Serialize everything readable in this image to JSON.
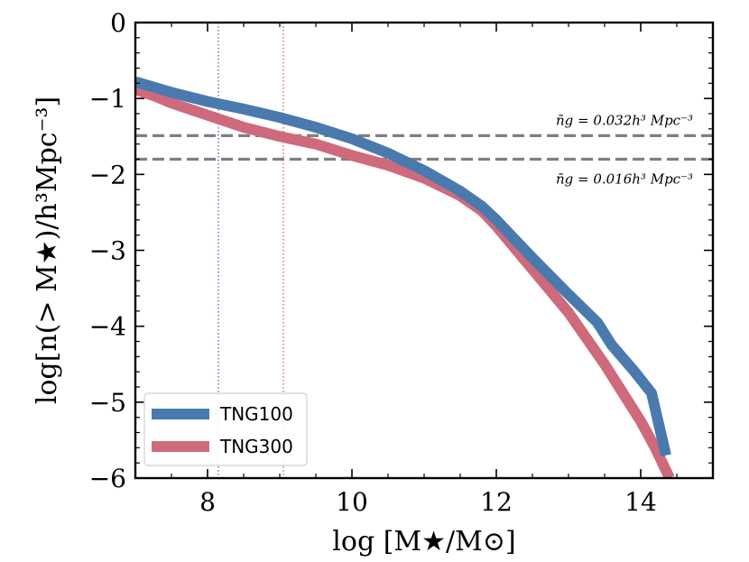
{
  "chart_data": {
    "type": "line",
    "title": "",
    "xlabel": "log [M★/M⊙]",
    "ylabel": "log[n(> M★)/h³Mpc⁻³]",
    "xlim": [
      7,
      15
    ],
    "ylim": [
      -6,
      0
    ],
    "x_ticks": [
      8,
      10,
      12,
      14
    ],
    "y_ticks": [
      0,
      -1,
      -2,
      -3,
      -4,
      -5,
      -6
    ],
    "x_tick_labels": [
      "8",
      "10",
      "12",
      "14"
    ],
    "y_tick_labels": [
      "0",
      "−1",
      "−2",
      "−3",
      "−4",
      "−5",
      "−6"
    ],
    "series": [
      {
        "name": "TNG100",
        "color": "#4a7aad",
        "x": [
          7.0,
          7.5,
          8.0,
          8.5,
          9.0,
          9.5,
          10.0,
          10.5,
          11.0,
          11.5,
          11.8,
          12.0,
          12.5,
          13.0,
          13.4,
          13.6,
          13.9,
          14.15,
          14.35
        ],
        "y": [
          -0.78,
          -0.92,
          -1.04,
          -1.14,
          -1.25,
          -1.38,
          -1.53,
          -1.72,
          -1.95,
          -2.22,
          -2.42,
          -2.6,
          -3.1,
          -3.58,
          -3.95,
          -4.25,
          -4.58,
          -4.88,
          -5.7
        ]
      },
      {
        "name": "TNG300",
        "color": "#cf6a7d",
        "x": [
          7.0,
          7.3,
          7.5,
          8.0,
          8.5,
          9.0,
          9.5,
          10.0,
          10.5,
          11.0,
          11.5,
          11.8,
          12.0,
          12.5,
          13.0,
          13.5,
          13.8,
          14.0,
          14.2,
          14.4
        ],
        "y": [
          -0.88,
          -0.98,
          -1.06,
          -1.22,
          -1.38,
          -1.5,
          -1.6,
          -1.75,
          -1.88,
          -2.05,
          -2.28,
          -2.48,
          -2.68,
          -3.25,
          -3.82,
          -4.5,
          -4.95,
          -5.25,
          -5.6,
          -6.0
        ]
      }
    ],
    "vlines": [
      {
        "x": 8.15,
        "color": "#4a7aad",
        "style": "dotted"
      },
      {
        "x": 9.05,
        "color": "#cf6a7d",
        "style": "dotted"
      }
    ],
    "hlines": [
      {
        "y": -1.49,
        "color": "#7f7f7f",
        "style": "dashed",
        "label": "n̄g = 0.032h³ Mpc⁻³"
      },
      {
        "y": -1.8,
        "color": "#7f7f7f",
        "style": "dashed",
        "label": "n̄g = 0.016h³ Mpc⁻³"
      }
    ],
    "legend": {
      "position": "lower-left",
      "entries": [
        "TNG100",
        "TNG300"
      ]
    }
  }
}
